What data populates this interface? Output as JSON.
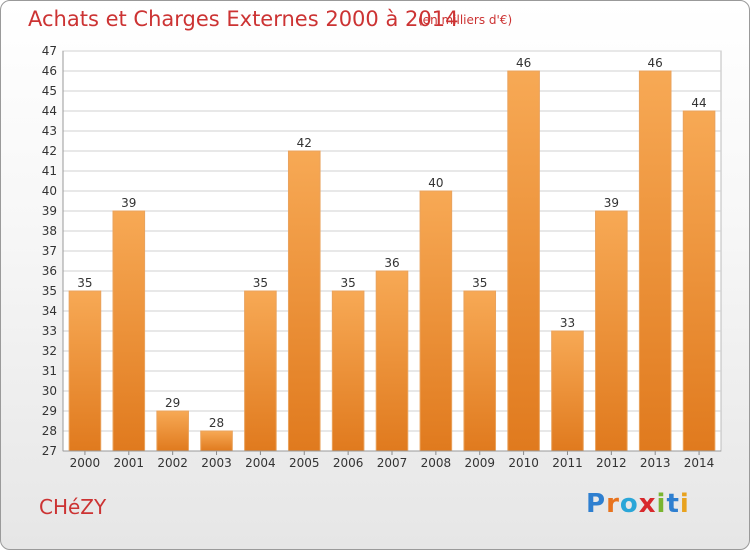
{
  "header": {
    "title": "Achats et Charges Externes 2000 à 2014",
    "subtitle": "(en milliers d'€)"
  },
  "footer": {
    "town": "CHéZY",
    "logo_letters": [
      "P",
      "r",
      "o",
      "x",
      "i",
      "t",
      "i"
    ]
  },
  "colors": {
    "title": "#cc3333",
    "bar_light": "#f7a955",
    "bar_dark": "#e07a1e",
    "grid": "#d2d2d2",
    "axis_text": "#333333"
  },
  "chart_data": {
    "type": "bar",
    "title": "Achats et Charges Externes 2000 à 2014",
    "subtitle": "(en milliers d'€)",
    "categories": [
      "2000",
      "2001",
      "2002",
      "2003",
      "2004",
      "2005",
      "2006",
      "2007",
      "2008",
      "2009",
      "2010",
      "2011",
      "2012",
      "2013",
      "2014"
    ],
    "values": [
      35,
      39,
      29,
      28,
      35,
      42,
      35,
      36,
      40,
      35,
      46,
      33,
      39,
      46,
      44
    ],
    "ylim": [
      27,
      47
    ],
    "yticks": [
      27,
      28,
      29,
      30,
      31,
      32,
      33,
      34,
      35,
      36,
      37,
      38,
      39,
      40,
      41,
      42,
      43,
      44,
      45,
      46,
      47
    ],
    "grid": true,
    "data_labels": true
  }
}
